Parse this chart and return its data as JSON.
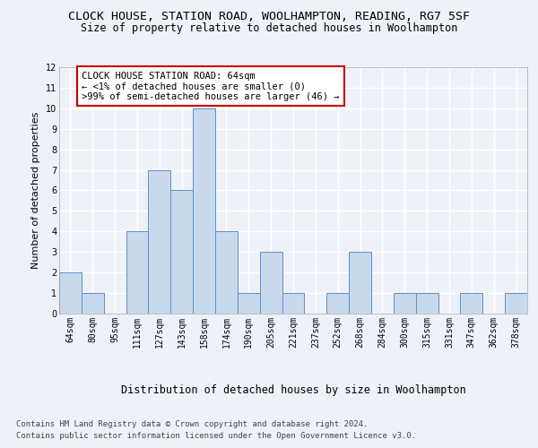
{
  "title": "CLOCK HOUSE, STATION ROAD, WOOLHAMPTON, READING, RG7 5SF",
  "subtitle": "Size of property relative to detached houses in Woolhampton",
  "xlabel": "Distribution of detached houses by size in Woolhampton",
  "ylabel": "Number of detached properties",
  "categories": [
    "64sqm",
    "80sqm",
    "95sqm",
    "111sqm",
    "127sqm",
    "143sqm",
    "158sqm",
    "174sqm",
    "190sqm",
    "205sqm",
    "221sqm",
    "237sqm",
    "252sqm",
    "268sqm",
    "284sqm",
    "300sqm",
    "315sqm",
    "331sqm",
    "347sqm",
    "362sqm",
    "378sqm"
  ],
  "values": [
    2,
    1,
    0,
    4,
    7,
    6,
    10,
    4,
    1,
    3,
    1,
    0,
    1,
    3,
    0,
    1,
    1,
    0,
    1,
    0,
    1
  ],
  "bar_color": "#c9d9ec",
  "bar_edge_color": "#5b8fc9",
  "annotation_box_color": "#ffffff",
  "annotation_border_color": "#cc0000",
  "annotation_text_line1": "CLOCK HOUSE STATION ROAD: 64sqm",
  "annotation_text_line2": "← <1% of detached houses are smaller (0)",
  "annotation_text_line3": ">99% of semi-detached houses are larger (46) →",
  "ylim": [
    0,
    12
  ],
  "yticks": [
    0,
    1,
    2,
    3,
    4,
    5,
    6,
    7,
    8,
    9,
    10,
    11,
    12
  ],
  "footer_line1": "Contains HM Land Registry data © Crown copyright and database right 2024.",
  "footer_line2": "Contains public sector information licensed under the Open Government Licence v3.0.",
  "background_color": "#eef2f8",
  "grid_color": "#ffffff",
  "title_fontsize": 9.5,
  "subtitle_fontsize": 8.5,
  "xlabel_fontsize": 8.5,
  "ylabel_fontsize": 8,
  "tick_fontsize": 7,
  "annotation_fontsize": 7.5,
  "footer_fontsize": 6.5
}
